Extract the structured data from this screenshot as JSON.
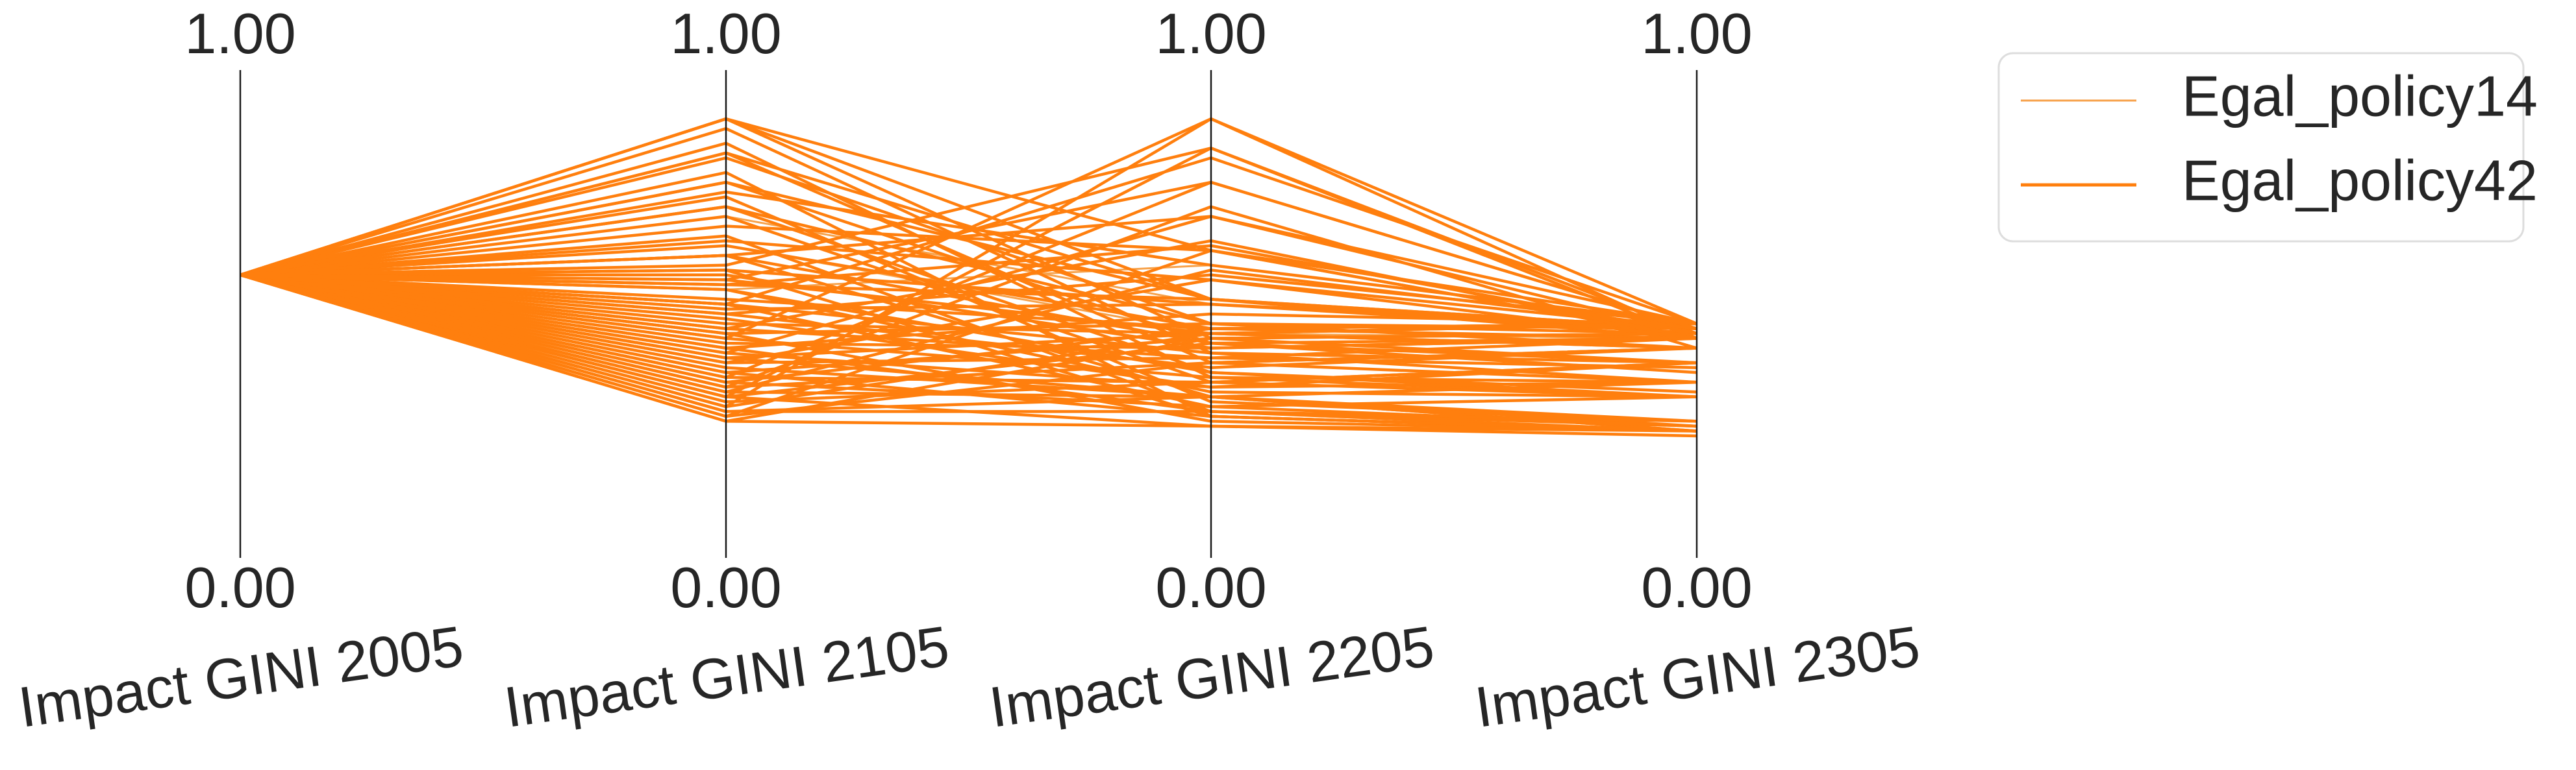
{
  "chart_data": {
    "type": "parallel_coordinates",
    "axes": [
      {
        "label": "Impact GINI 2005",
        "min_label": "0.00",
        "max_label": "1.00",
        "range": [
          0,
          1
        ]
      },
      {
        "label": "Impact GINI 2105",
        "min_label": "0.00",
        "max_label": "1.00",
        "range": [
          0,
          1
        ]
      },
      {
        "label": "Impact GINI 2205",
        "min_label": "0.00",
        "max_label": "1.00",
        "range": [
          0,
          1
        ]
      },
      {
        "label": "Impact GINI 2305",
        "min_label": "0.00",
        "max_label": "1.00",
        "range": [
          0,
          1
        ]
      }
    ],
    "legend": {
      "placement": "top-right (outside plot)",
      "entries": [
        {
          "name": "Egal_policy14",
          "color": "#f7a24b"
        },
        {
          "name": "Egal_policy42",
          "color": "#ff7f0e"
        }
      ]
    },
    "series": [
      {
        "name": "Egal_policy14",
        "color": "#f7a24b",
        "lines": [
          [
            0.58,
            0.7,
            0.52,
            0.47
          ],
          [
            0.58,
            0.64,
            0.46,
            0.45
          ],
          [
            0.58,
            0.55,
            0.6,
            0.48
          ]
        ]
      },
      {
        "name": "Egal_policy42",
        "color": "#ff7f0e",
        "lines": [
          [
            0.58,
            0.9,
            0.63,
            0.45
          ],
          [
            0.58,
            0.9,
            0.53,
            0.47
          ],
          [
            0.58,
            0.9,
            0.45,
            0.4
          ],
          [
            0.58,
            0.83,
            0.53,
            0.47
          ],
          [
            0.58,
            0.83,
            0.4,
            0.36
          ],
          [
            0.58,
            0.82,
            0.48,
            0.43
          ],
          [
            0.58,
            0.77,
            0.53,
            0.45
          ],
          [
            0.58,
            0.77,
            0.44,
            0.38
          ],
          [
            0.58,
            0.72,
            0.48,
            0.47
          ],
          [
            0.58,
            0.72,
            0.38,
            0.34
          ],
          [
            0.58,
            0.64,
            0.47,
            0.45
          ],
          [
            0.58,
            0.62,
            0.44,
            0.4
          ],
          [
            0.58,
            0.59,
            0.52,
            0.47
          ],
          [
            0.58,
            0.58,
            0.43,
            0.45
          ],
          [
            0.58,
            0.57,
            0.46,
            0.43
          ],
          [
            0.58,
            0.56,
            0.53,
            0.46
          ],
          [
            0.58,
            0.55,
            0.38,
            0.33
          ],
          [
            0.58,
            0.53,
            0.47,
            0.48
          ],
          [
            0.58,
            0.52,
            0.42,
            0.36
          ],
          [
            0.58,
            0.51,
            0.52,
            0.46
          ],
          [
            0.58,
            0.5,
            0.39,
            0.43
          ],
          [
            0.58,
            0.48,
            0.46,
            0.48
          ],
          [
            0.58,
            0.47,
            0.41,
            0.39
          ],
          [
            0.58,
            0.46,
            0.48,
            0.46
          ],
          [
            0.58,
            0.45,
            0.37,
            0.33
          ],
          [
            0.58,
            0.44,
            0.43,
            0.45
          ],
          [
            0.58,
            0.43,
            0.5,
            0.48
          ],
          [
            0.58,
            0.42,
            0.35,
            0.36
          ],
          [
            0.58,
            0.41,
            0.46,
            0.43
          ],
          [
            0.58,
            0.4,
            0.41,
            0.45
          ],
          [
            0.58,
            0.39,
            0.33,
            0.26
          ],
          [
            0.58,
            0.38,
            0.45,
            0.46
          ],
          [
            0.58,
            0.37,
            0.36,
            0.4
          ],
          [
            0.58,
            0.36,
            0.47,
            0.48
          ],
          [
            0.58,
            0.35,
            0.4,
            0.43
          ],
          [
            0.58,
            0.34,
            0.33,
            0.27
          ],
          [
            0.58,
            0.33,
            0.44,
            0.45
          ],
          [
            0.58,
            0.32,
            0.36,
            0.4
          ],
          [
            0.58,
            0.31,
            0.46,
            0.48
          ],
          [
            0.58,
            0.3,
            0.33,
            0.26
          ],
          [
            0.58,
            0.29,
            0.4,
            0.43
          ],
          [
            0.58,
            0.28,
            0.27,
            0.26
          ],
          [
            0.58,
            0.28,
            0.45,
            0.46
          ],
          [
            0.58,
            0.3,
            0.3,
            0.27
          ],
          [
            0.58,
            0.33,
            0.27,
            0.25
          ],
          [
            0.58,
            0.36,
            0.31,
            0.33
          ],
          [
            0.58,
            0.38,
            0.29,
            0.26
          ],
          [
            0.58,
            0.41,
            0.33,
            0.36
          ],
          [
            0.58,
            0.43,
            0.3,
            0.28
          ],
          [
            0.58,
            0.46,
            0.28,
            0.26
          ],
          [
            0.58,
            0.49,
            0.35,
            0.4
          ],
          [
            0.58,
            0.52,
            0.31,
            0.27
          ],
          [
            0.58,
            0.55,
            0.34,
            0.33
          ],
          [
            0.58,
            0.59,
            0.29,
            0.26
          ],
          [
            0.58,
            0.62,
            0.33,
            0.28
          ],
          [
            0.58,
            0.66,
            0.3,
            0.26
          ],
          [
            0.58,
            0.7,
            0.36,
            0.33
          ],
          [
            0.58,
            0.74,
            0.32,
            0.28
          ],
          [
            0.58,
            0.79,
            0.29,
            0.26
          ],
          [
            0.58,
            0.85,
            0.37,
            0.36
          ],
          [
            0.58,
            0.88,
            0.42,
            0.4
          ],
          [
            0.58,
            0.75,
            0.6,
            0.48
          ],
          [
            0.58,
            0.68,
            0.63,
            0.45
          ],
          [
            0.58,
            0.62,
            0.7,
            0.48
          ],
          [
            0.58,
            0.57,
            0.77,
            0.47
          ],
          [
            0.58,
            0.52,
            0.82,
            0.48
          ],
          [
            0.58,
            0.47,
            0.65,
            0.45
          ],
          [
            0.58,
            0.42,
            0.7,
            0.46
          ],
          [
            0.58,
            0.37,
            0.77,
            0.47
          ],
          [
            0.58,
            0.33,
            0.84,
            0.46
          ],
          [
            0.58,
            0.29,
            0.63,
            0.48
          ],
          [
            0.58,
            0.31,
            0.9,
            0.45
          ],
          [
            0.58,
            0.35,
            0.72,
            0.43
          ],
          [
            0.58,
            0.45,
            0.9,
            0.48
          ],
          [
            0.58,
            0.6,
            0.84,
            0.45
          ],
          [
            0.58,
            0.65,
            0.57,
            0.47
          ],
          [
            0.58,
            0.4,
            0.57,
            0.45
          ],
          [
            0.58,
            0.34,
            0.59,
            0.47
          ],
          [
            0.58,
            0.5,
            0.58,
            0.48
          ],
          [
            0.58,
            0.56,
            0.64,
            0.46
          ]
        ]
      }
    ]
  }
}
